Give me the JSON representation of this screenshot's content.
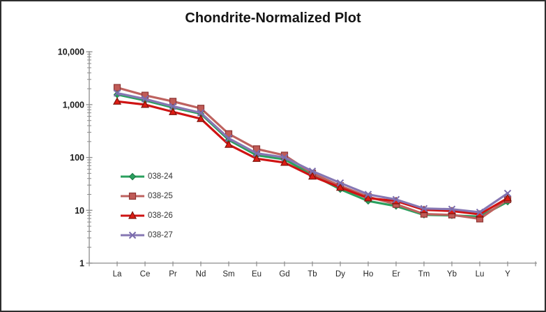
{
  "title": "Chondrite-Normalized Plot",
  "colors": {
    "border": "#2e2e2e",
    "axis": "#8c8c8c",
    "title_text": "#141414",
    "tick_text": "#262626"
  },
  "chart_data": {
    "type": "line",
    "title": "Chondrite-Normalized Plot",
    "xlabel": "",
    "ylabel": "",
    "x_scale": "category",
    "y_scale": "log",
    "ylim": [
      1,
      10000
    ],
    "grid": false,
    "legend_position": "middle-left",
    "y_ticks": [
      {
        "value": 10000,
        "label": "10,000"
      },
      {
        "value": 1000,
        "label": "1,000"
      },
      {
        "value": 100,
        "label": "100"
      },
      {
        "value": 10,
        "label": "10"
      },
      {
        "value": 1,
        "label": "1"
      }
    ],
    "categories": [
      "La",
      "Ce",
      "Pr",
      "Nd",
      "Sm",
      "Eu",
      "Gd",
      "Tb",
      "Dy",
      "Ho",
      "Er",
      "Tm",
      "Yb",
      "Lu",
      "Y"
    ],
    "series": [
      {
        "name": "038-24",
        "marker": "diamond",
        "line_color": "#2aa05e",
        "marker_fill": "#2aa05e",
        "marker_stroke": "#1e7a46",
        "values": [
          1550,
          1200,
          880,
          670,
          215,
          110,
          92,
          47,
          25,
          15,
          12,
          8.2,
          8.0,
          7.6,
          14.5
        ]
      },
      {
        "name": "038-25",
        "marker": "square",
        "line_color": "#be625f",
        "marker_fill": "#c05b57",
        "marker_stroke": "#8e3634",
        "values": [
          2100,
          1500,
          1150,
          850,
          280,
          145,
          110,
          50,
          29,
          18,
          13,
          8.5,
          8.2,
          6.9,
          16
        ]
      },
      {
        "name": "038-26",
        "marker": "triangle",
        "line_color": "#cf1313",
        "marker_fill": "#dd1c14",
        "marker_stroke": "#7e150d",
        "values": [
          1150,
          1000,
          730,
          540,
          175,
          95,
          80,
          44,
          27,
          17,
          15,
          10.2,
          9.7,
          8.4,
          17
        ]
      },
      {
        "name": "038-27",
        "marker": "x",
        "line_color": "#8677b3",
        "marker_fill": "none",
        "marker_stroke": "#7b6cad",
        "values": [
          1650,
          1280,
          930,
          700,
          230,
          120,
          100,
          55,
          33,
          20,
          16,
          10.8,
          10.5,
          9.2,
          21
        ]
      }
    ]
  }
}
